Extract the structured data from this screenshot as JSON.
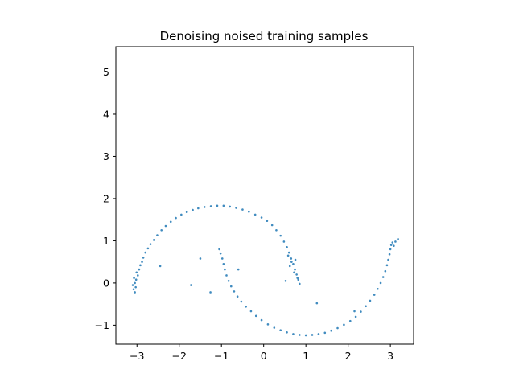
{
  "chart_data": {
    "type": "scatter",
    "title": "Denoising noised training samples",
    "xlabel": "",
    "ylabel": "",
    "xlim": [
      -3.5,
      3.55
    ],
    "ylim": [
      -1.45,
      5.6
    ],
    "xticks": [
      -3,
      -2,
      -1,
      0,
      1,
      2,
      3
    ],
    "yticks": [
      -1,
      0,
      1,
      2,
      3,
      4,
      5
    ],
    "grid": false,
    "legend": "none",
    "marker_color": "#1f77b4",
    "marker_size": 0.8,
    "series": [
      {
        "description": "upper arc and lower arc (two-moons), sampled points",
        "points": [
          [
            -3.05,
            -0.22
          ],
          [
            -3.08,
            -0.15
          ],
          [
            -3.03,
            -0.1
          ],
          [
            -3.1,
            -0.05
          ],
          [
            -3.05,
            0.0
          ],
          [
            -3.02,
            0.08
          ],
          [
            -3.07,
            0.12
          ],
          [
            -2.98,
            0.18
          ],
          [
            -3.01,
            0.25
          ],
          [
            -2.95,
            0.32
          ],
          [
            -2.92,
            0.42
          ],
          [
            -2.88,
            0.5
          ],
          [
            -2.85,
            0.6
          ],
          [
            -2.8,
            0.72
          ],
          [
            -2.74,
            0.82
          ],
          [
            -2.68,
            0.92
          ],
          [
            -2.6,
            1.02
          ],
          [
            -2.52,
            1.13
          ],
          [
            -2.42,
            1.25
          ],
          [
            -2.32,
            1.35
          ],
          [
            -2.2,
            1.45
          ],
          [
            -2.08,
            1.54
          ],
          [
            -1.95,
            1.62
          ],
          [
            -1.82,
            1.68
          ],
          [
            -1.68,
            1.73
          ],
          [
            -1.55,
            1.77
          ],
          [
            -1.4,
            1.8
          ],
          [
            -1.25,
            1.82
          ],
          [
            -1.1,
            1.83
          ],
          [
            -0.95,
            1.83
          ],
          [
            -0.8,
            1.81
          ],
          [
            -0.65,
            1.78
          ],
          [
            -0.5,
            1.74
          ],
          [
            -0.35,
            1.69
          ],
          [
            -0.2,
            1.62
          ],
          [
            -0.05,
            1.55
          ],
          [
            0.08,
            1.47
          ],
          [
            0.2,
            1.37
          ],
          [
            0.3,
            1.25
          ],
          [
            0.4,
            1.12
          ],
          [
            0.48,
            0.98
          ],
          [
            0.55,
            0.85
          ],
          [
            0.6,
            0.72
          ],
          [
            0.65,
            0.58
          ],
          [
            0.7,
            0.45
          ],
          [
            0.74,
            0.32
          ],
          [
            0.78,
            0.2
          ],
          [
            0.82,
            0.08
          ],
          [
            0.85,
            -0.02
          ],
          [
            0.66,
            0.5
          ],
          [
            0.58,
            0.65
          ],
          [
            0.72,
            0.25
          ],
          [
            0.8,
            0.12
          ],
          [
            0.62,
            0.4
          ],
          [
            0.75,
            0.55
          ],
          [
            -1.05,
            0.8
          ],
          [
            -1.02,
            0.7
          ],
          [
            -0.98,
            0.58
          ],
          [
            -0.95,
            0.45
          ],
          [
            -0.92,
            0.32
          ],
          [
            -0.88,
            0.18
          ],
          [
            -0.83,
            0.05
          ],
          [
            -0.77,
            -0.08
          ],
          [
            -0.7,
            -0.2
          ],
          [
            -0.62,
            -0.32
          ],
          [
            -0.53,
            -0.44
          ],
          [
            -0.42,
            -0.56
          ],
          [
            -0.3,
            -0.67
          ],
          [
            -0.18,
            -0.78
          ],
          [
            -0.05,
            -0.88
          ],
          [
            0.1,
            -0.98
          ],
          [
            0.25,
            -1.06
          ],
          [
            0.4,
            -1.12
          ],
          [
            0.55,
            -1.17
          ],
          [
            0.7,
            -1.21
          ],
          [
            0.85,
            -1.23
          ],
          [
            1.0,
            -1.24
          ],
          [
            1.15,
            -1.23
          ],
          [
            1.3,
            -1.21
          ],
          [
            1.45,
            -1.18
          ],
          [
            1.6,
            -1.13
          ],
          [
            1.75,
            -1.07
          ],
          [
            1.9,
            -0.99
          ],
          [
            2.05,
            -0.9
          ],
          [
            2.18,
            -0.8
          ],
          [
            2.3,
            -0.68
          ],
          [
            2.42,
            -0.55
          ],
          [
            2.52,
            -0.42
          ],
          [
            2.62,
            -0.28
          ],
          [
            2.7,
            -0.14
          ],
          [
            2.77,
            0.0
          ],
          [
            2.83,
            0.14
          ],
          [
            2.88,
            0.28
          ],
          [
            2.92,
            0.42
          ],
          [
            2.95,
            0.55
          ],
          [
            2.98,
            0.68
          ],
          [
            3.0,
            0.8
          ],
          [
            3.02,
            0.9
          ],
          [
            3.05,
            0.96
          ],
          [
            3.08,
            0.88
          ],
          [
            -1.5,
            0.58
          ],
          [
            -1.72,
            -0.05
          ],
          [
            -1.26,
            -0.22
          ],
          [
            0.52,
            0.05
          ],
          [
            1.26,
            -0.48
          ],
          [
            3.12,
            0.98
          ],
          [
            3.18,
            1.04
          ],
          [
            -0.6,
            0.32
          ],
          [
            2.15,
            -0.67
          ],
          [
            -2.45,
            0.4
          ]
        ]
      }
    ]
  }
}
